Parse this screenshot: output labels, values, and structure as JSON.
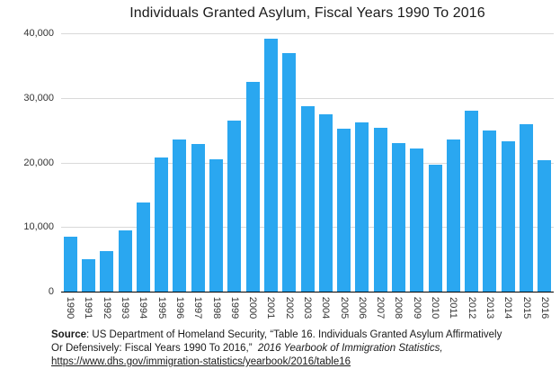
{
  "chart_data": {
    "type": "bar",
    "title": "Individuals Granted Asylum, Fiscal Years 1990 To 2016",
    "categories": [
      "1990",
      "1991",
      "1992",
      "1993",
      "1994",
      "1995",
      "1996",
      "1997",
      "1998",
      "1999",
      "2000",
      "2001",
      "2002",
      "2003",
      "2004",
      "2005",
      "2006",
      "2007",
      "2008",
      "2009",
      "2010",
      "2011",
      "2012",
      "2013",
      "2014",
      "2015",
      "2016"
    ],
    "values": [
      8500,
      5000,
      6300,
      9500,
      13800,
      20700,
      23500,
      22900,
      20500,
      26500,
      32500,
      39200,
      36900,
      28700,
      27400,
      25200,
      26200,
      25300,
      23000,
      22200,
      19700,
      23600,
      28000,
      25000,
      23300,
      25900,
      20400
    ],
    "xlabel": "",
    "ylabel": "",
    "ylim": [
      0,
      40000
    ],
    "y_ticks": [
      "0",
      "10,000",
      "20,000",
      "30,000",
      "40,000"
    ],
    "grid": true,
    "legend": "none",
    "bar_color": "#2AA7F0",
    "gridline_color": "#D9D9D9",
    "axis_line_color": "#000000"
  },
  "source": {
    "label": "Source",
    "line1": ": US Department of Homeland Security, “Table 16. Individuals Granted Asylum Affirmatively",
    "line2": "Or Defensively: Fiscal Years 1990 To 2016,”  ",
    "italic": "2016 Yearbook of Immigration Statistics,",
    "link": "https://www.dhs.gov/immigration-statistics/yearbook/2016/table16"
  }
}
